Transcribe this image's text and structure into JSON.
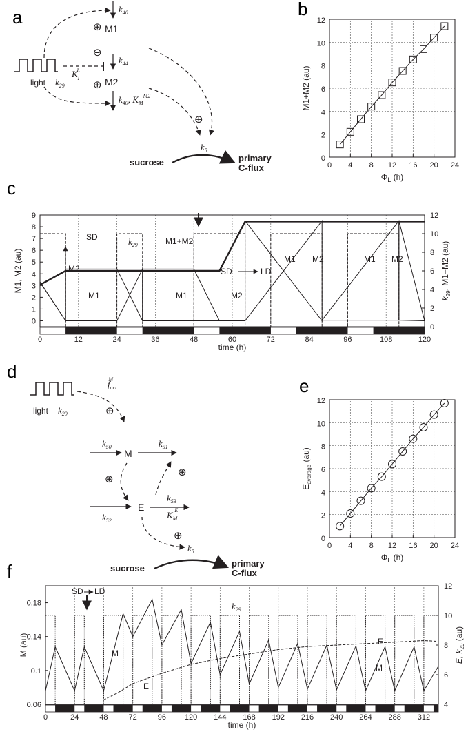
{
  "panels": {
    "a": {
      "label": "a",
      "nodes": [
        "M1",
        "M2"
      ],
      "light": "light",
      "k29": "k",
      "k29_sub": "29",
      "k40": "k",
      "k40_sub": "40",
      "k44": "k",
      "k44_sub": "44",
      "KI": "K",
      "KI_sup": "L",
      "KI_sub": "I",
      "k40KM": "k",
      "k40KM_sub": "40",
      "KM": "K",
      "KM_sub": "M",
      "KM_sup": "M2",
      "k5": "k",
      "k5_sub": "5",
      "sucrose": "sucrose",
      "flux1": "primary",
      "flux2": "C-flux",
      "plus": "⊕",
      "minus": "⊖"
    },
    "b": {
      "label": "b"
    },
    "c": {
      "label": "c",
      "ann_sd": "SD",
      "ann_m1m2": "M1+M2",
      "ann_k29": "k",
      "ann_k29_sub": "29",
      "ann_m2_arrow": "M2",
      "ann_m1": "M1",
      "ann_m2": "M2",
      "ann_sd_ld_sd": "SD",
      "ann_sd_ld_ld": "LD",
      "ann_cross_m1": "M1",
      "ann_cross_m2": "M2"
    },
    "d": {
      "label": "d",
      "light": "light",
      "k29": "k",
      "k29_sub": "29",
      "fact": "f",
      "fact_sub": "act",
      "fact_sup": "M",
      "node_m": "M",
      "node_e": "E",
      "k50": "k",
      "k50_sub": "50",
      "k51": "k",
      "k51_sub": "51",
      "k52": "k",
      "k52_sub": "52",
      "k53": "k",
      "k53_sub": "53",
      "KME": "K",
      "KME_sub": "M",
      "KME_sup": "E",
      "k5": "k",
      "k5_sub": "5",
      "sucrose": "sucrose",
      "flux1": "primary",
      "flux2": "C-flux",
      "plus": "⊕"
    },
    "e": {
      "label": "e"
    },
    "f": {
      "label": "f",
      "ann_sd": "SD",
      "ann_ld": "LD",
      "ann_k29": "k",
      "ann_k29_sub": "29",
      "ann_m": "M",
      "ann_e": "E",
      "ann_e2": "E",
      "ann_m2": "M"
    }
  },
  "chart_data": [
    {
      "panel": "b",
      "type": "line",
      "xlabel": "Φ",
      "xlabel_sub": "L",
      "xlabel_unit": " (h)",
      "ylabel": "M1+M2 (au)",
      "xlim": [
        0,
        24
      ],
      "ylim": [
        0,
        12
      ],
      "xticks": [
        0,
        4,
        8,
        12,
        16,
        20,
        24
      ],
      "yticks": [
        0,
        2,
        4,
        6,
        8,
        10,
        12
      ],
      "grid": true,
      "marker": "square",
      "x": [
        2,
        4,
        6,
        8,
        10,
        12,
        14,
        16,
        18,
        20,
        22
      ],
      "y": [
        1.1,
        2.2,
        3.3,
        4.4,
        5.4,
        6.5,
        7.5,
        8.5,
        9.4,
        10.4,
        11.4
      ]
    },
    {
      "panel": "e",
      "type": "line",
      "xlabel": "Φ",
      "xlabel_sub": "L",
      "xlabel_unit": " (h)",
      "ylabel": "E",
      "ylabel_sub": "average",
      "ylabel_unit": " (au)",
      "xlim": [
        0,
        24
      ],
      "ylim": [
        0,
        12
      ],
      "xticks": [
        0,
        4,
        8,
        12,
        16,
        20,
        24
      ],
      "yticks": [
        0,
        2,
        4,
        6,
        8,
        10,
        12
      ],
      "grid": true,
      "marker": "circle",
      "x": [
        2,
        4,
        6,
        8,
        10,
        12,
        14,
        16,
        18,
        20,
        22
      ],
      "y": [
        1.0,
        2.1,
        3.2,
        4.3,
        5.3,
        6.4,
        7.5,
        8.6,
        9.6,
        10.7,
        11.7
      ]
    },
    {
      "panel": "c",
      "type": "line",
      "xlabel": "time (h)",
      "ylabel_left": "M1, M2 (au)",
      "ylabel_right": "k",
      "ylabel_right_sub": "29",
      "ylabel_right_rest": ", M1+M2 (au)",
      "xlim": [
        0,
        120
      ],
      "ylim_left": [
        -0.5,
        9
      ],
      "ylim_right": [
        0,
        12
      ],
      "xticks": [
        0,
        12,
        24,
        36,
        48,
        60,
        72,
        84,
        96,
        108,
        120
      ],
      "yticks_left": [
        0,
        1,
        2,
        3,
        4,
        5,
        6,
        7,
        8,
        9
      ],
      "yticks_right": [
        0,
        2,
        4,
        6,
        8,
        10,
        12
      ],
      "day_night": [
        [
          0,
          8,
          "light"
        ],
        [
          8,
          24,
          "dark"
        ],
        [
          24,
          32,
          "light"
        ],
        [
          32,
          48,
          "dark"
        ],
        [
          48,
          64,
          "light"
        ],
        [
          64,
          72,
          "dark"
        ],
        [
          72,
          88,
          "light"
        ],
        [
          88,
          96,
          "dark"
        ],
        [
          96,
          112,
          "light"
        ],
        [
          112,
          120,
          "dark"
        ]
      ],
      "series": [
        {
          "name": "M1+M2",
          "axis": "right",
          "style": "thick",
          "x": [
            0,
            0,
            8,
            8,
            24,
            32,
            48,
            56,
            64,
            64,
            72,
            88,
            96,
            112,
            120
          ],
          "y": [
            4.5,
            4.5,
            6,
            6,
            6,
            6,
            6,
            6,
            11.3,
            11.3,
            11.3,
            11.3,
            11.3,
            11.3,
            11.3
          ]
        },
        {
          "name": "M1",
          "axis": "left",
          "x": [
            0,
            0,
            8,
            8,
            24,
            32,
            32,
            48,
            56,
            64,
            64,
            88,
            88,
            112,
            112,
            120
          ],
          "y": [
            0,
            3.3,
            0,
            0,
            0,
            4.4,
            0,
            0,
            0,
            0,
            8.5,
            0,
            0.05,
            0.05,
            8.5,
            0
          ]
        },
        {
          "name": "M2",
          "axis": "left",
          "x": [
            0,
            8,
            8,
            24,
            32,
            32,
            48,
            56,
            64,
            64,
            88,
            88,
            112,
            112,
            120
          ],
          "y": [
            3.3,
            0,
            4.4,
            4.4,
            0,
            4.4,
            4.4,
            0,
            0,
            0,
            8.5,
            0.05,
            8.5,
            0.05,
            0
          ]
        },
        {
          "name": "k29",
          "axis": "right",
          "style": "dashed",
          "x": [
            0,
            8,
            8,
            24,
            24,
            32,
            32,
            48,
            48,
            64,
            64,
            72,
            72,
            88,
            88,
            96,
            96,
            112,
            112,
            120
          ],
          "y": [
            10,
            10,
            0,
            0,
            10,
            10,
            0,
            0,
            10,
            10,
            0,
            0,
            10,
            10,
            0,
            0,
            10,
            10,
            0,
            0
          ]
        }
      ]
    },
    {
      "panel": "f",
      "type": "line",
      "xlabel": "time (h)",
      "ylabel_left": "M (au)",
      "ylabel_right": "E, k",
      "ylabel_right_sub": "29",
      "ylabel_right_rest": " (au)",
      "xlim": [
        0,
        324
      ],
      "ylim_left": [
        0.06,
        0.2
      ],
      "ylim_right": [
        4,
        12
      ],
      "xticks": [
        0,
        24,
        48,
        72,
        96,
        120,
        144,
        168,
        192,
        216,
        240,
        264,
        288,
        312
      ],
      "yticks_left": [
        0.06,
        0.1,
        0.14,
        0.18
      ],
      "yticks_right": [
        4,
        6,
        8,
        10,
        12
      ],
      "series": [
        {
          "name": "M",
          "axis": "left",
          "x": [
            0,
            8,
            24,
            32,
            48,
            64,
            72,
            88,
            96,
            112,
            120,
            136,
            144,
            160,
            168,
            184,
            192,
            208,
            216,
            232,
            240,
            256,
            264,
            280,
            288,
            304,
            312,
            324
          ],
          "y": [
            0.076,
            0.128,
            0.076,
            0.128,
            0.076,
            0.167,
            0.14,
            0.184,
            0.13,
            0.172,
            0.108,
            0.157,
            0.095,
            0.146,
            0.084,
            0.136,
            0.08,
            0.132,
            0.078,
            0.13,
            0.077,
            0.129,
            0.076,
            0.128,
            0.076,
            0.128,
            0.076,
            0.105
          ]
        },
        {
          "name": "E",
          "axis": "right",
          "style": "dashed",
          "x": [
            0,
            24,
            48,
            60,
            72,
            96,
            120,
            144,
            168,
            192,
            216,
            240,
            264,
            288,
            312,
            324
          ],
          "y": [
            4.3,
            4.3,
            4.3,
            4.8,
            5.4,
            6.1,
            6.7,
            7.1,
            7.4,
            7.7,
            7.9,
            8.0,
            8.1,
            8.2,
            8.3,
            8.25
          ]
        },
        {
          "name": "k29",
          "axis": "right",
          "style": "dotted",
          "x": [
            0,
            8,
            8,
            24,
            24,
            32,
            32,
            48,
            48,
            64,
            64,
            72,
            72,
            88,
            88,
            96,
            96,
            112,
            112,
            120,
            120,
            136,
            136,
            144,
            144,
            160,
            160,
            168,
            168,
            184,
            184,
            192,
            192,
            208,
            208,
            216,
            216,
            232,
            232,
            240,
            240,
            256,
            256,
            264,
            264,
            280,
            280,
            288,
            288,
            304,
            304,
            312,
            312,
            324
          ],
          "y": [
            10,
            10,
            4,
            4,
            10,
            10,
            4,
            4,
            10,
            10,
            4,
            4,
            10,
            10,
            4,
            4,
            10,
            10,
            4,
            4,
            10,
            10,
            4,
            4,
            10,
            10,
            4,
            4,
            10,
            10,
            4,
            4,
            10,
            10,
            4,
            4,
            10,
            10,
            4,
            4,
            10,
            10,
            4,
            4,
            10,
            10,
            4,
            4,
            10,
            10,
            4,
            4,
            10,
            10
          ]
        }
      ]
    }
  ]
}
